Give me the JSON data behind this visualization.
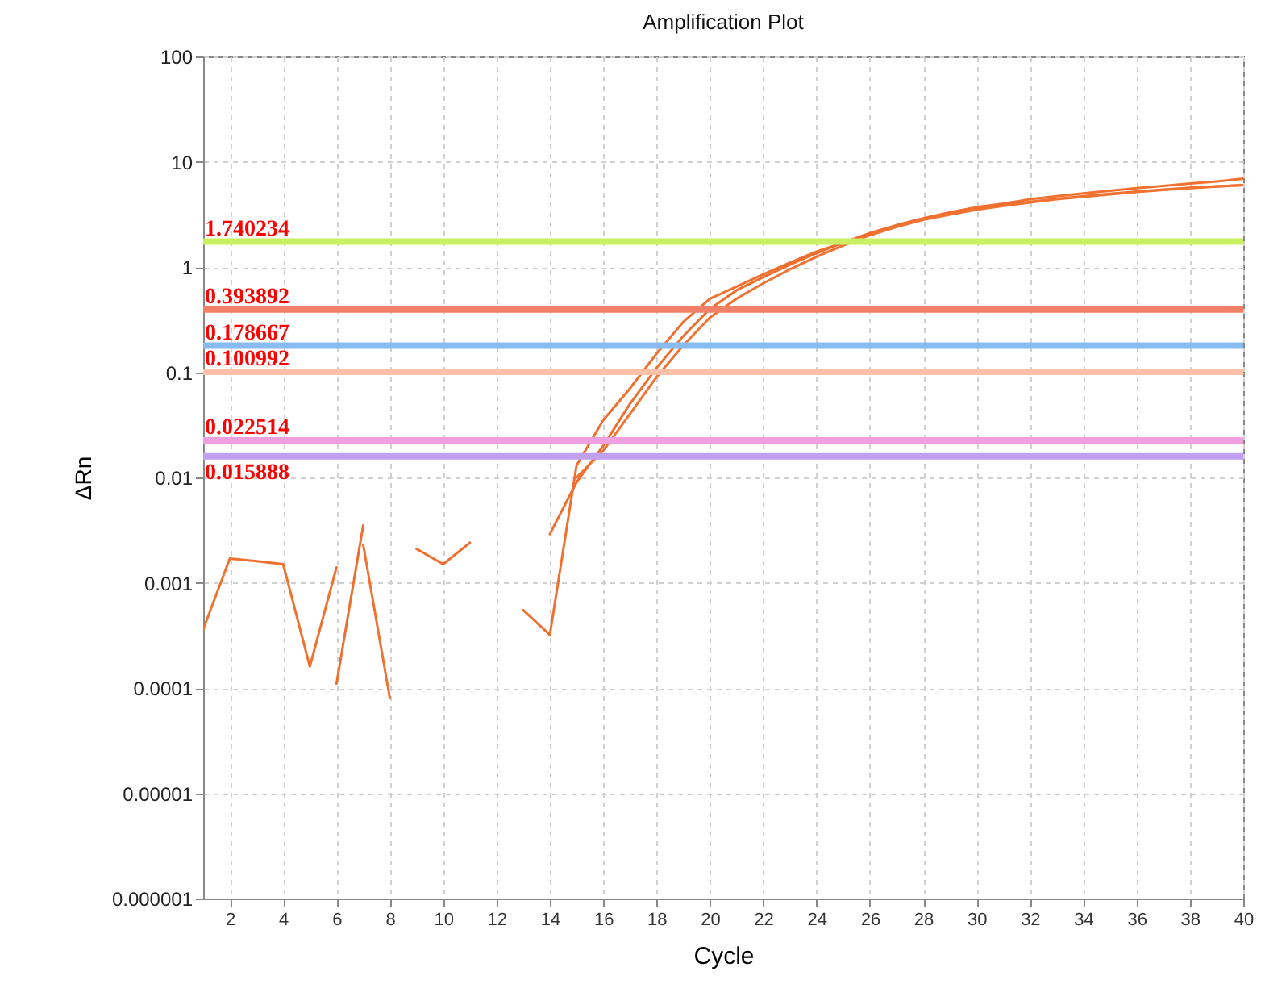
{
  "chart_data": {
    "type": "line",
    "title": "Amplification Plot",
    "xlabel": "Cycle",
    "ylabel": "ΔRn",
    "log": "y",
    "grid": true,
    "legend": false,
    "line_style": "solid",
    "marker": "none",
    "x": [
      1,
      2,
      3,
      4,
      5,
      6,
      7,
      8,
      9,
      10,
      11,
      12,
      13,
      14,
      15,
      16,
      17,
      18,
      19,
      20,
      21,
      22,
      23,
      24,
      25,
      26,
      27,
      28,
      29,
      30,
      31,
      32,
      33,
      34,
      35,
      36,
      37,
      38,
      39,
      40
    ],
    "xlim": [
      1,
      40
    ],
    "xticks": [
      2,
      4,
      6,
      8,
      10,
      12,
      14,
      16,
      18,
      20,
      22,
      24,
      26,
      28,
      30,
      32,
      34,
      36,
      38,
      40
    ],
    "ylim": [
      1e-06,
      100
    ],
    "yticks": [
      {
        "value": 1e-06,
        "label": "0.000001"
      },
      {
        "value": 1e-05,
        "label": "0.00001"
      },
      0.0001,
      0.001,
      0.01,
      0.1,
      1,
      10,
      100
    ],
    "series": [
      {
        "color": "#f07030",
        "values": [
          0.00036,
          0.0017,
          0.0016,
          0.0015,
          0.00016,
          0.0014,
          null,
          null,
          null,
          null,
          null,
          null,
          0.00055,
          0.00032,
          0.013,
          0.035,
          0.07,
          0.15,
          0.3,
          0.5,
          0.65,
          0.85,
          1.1,
          1.4,
          1.7,
          2.1,
          2.5,
          2.9,
          3.3,
          3.7,
          4.0,
          4.4,
          4.7,
          5.0,
          5.3,
          5.6,
          5.9,
          6.2,
          6.5,
          6.9
        ]
      },
      {
        "color": "#ee6e2e",
        "values": [
          null,
          null,
          null,
          null,
          null,
          0.00011,
          0.0035,
          null,
          0.0021,
          0.0015,
          0.0024,
          null,
          null,
          0.0029,
          0.009,
          0.02,
          0.05,
          0.11,
          0.22,
          0.4,
          0.6,
          0.8,
          1.05,
          1.35,
          1.7,
          2.05,
          2.45,
          2.85,
          3.2,
          3.55,
          3.85,
          4.15,
          4.45,
          4.7,
          4.95,
          5.2,
          5.45,
          5.65,
          5.85,
          6.0
        ]
      },
      {
        "color": "#f27232",
        "values": [
          null,
          null,
          null,
          null,
          null,
          null,
          0.0023,
          8e-05,
          null,
          null,
          null,
          null,
          null,
          null,
          0.01,
          0.018,
          0.04,
          0.09,
          0.18,
          0.33,
          0.5,
          0.7,
          0.95,
          1.25,
          1.6,
          2.0,
          2.4,
          2.8,
          3.15,
          3.5,
          3.8,
          4.1,
          4.4,
          4.65,
          4.9,
          5.15,
          5.4,
          5.6,
          5.8,
          6.0
        ]
      }
    ],
    "ref_lines": [
      {
        "axis": "y",
        "value": 1.740234,
        "label": "1.740234",
        "color": "#c8f060"
      },
      {
        "axis": "y",
        "value": 0.393892,
        "label": "0.393892",
        "color": "#f08068"
      },
      {
        "axis": "y",
        "value": 0.178667,
        "label": "0.178667",
        "color": "#88bbf0"
      },
      {
        "axis": "y",
        "value": 0.100992,
        "label": "0.100992",
        "color": "#ffc0a8"
      },
      {
        "axis": "y",
        "value": 0.022514,
        "label": "0.022514",
        "color": "#f0a0e0"
      },
      {
        "axis": "y",
        "value": 0.015888,
        "label": "0.015888",
        "color": "#c0a0f0"
      }
    ]
  }
}
